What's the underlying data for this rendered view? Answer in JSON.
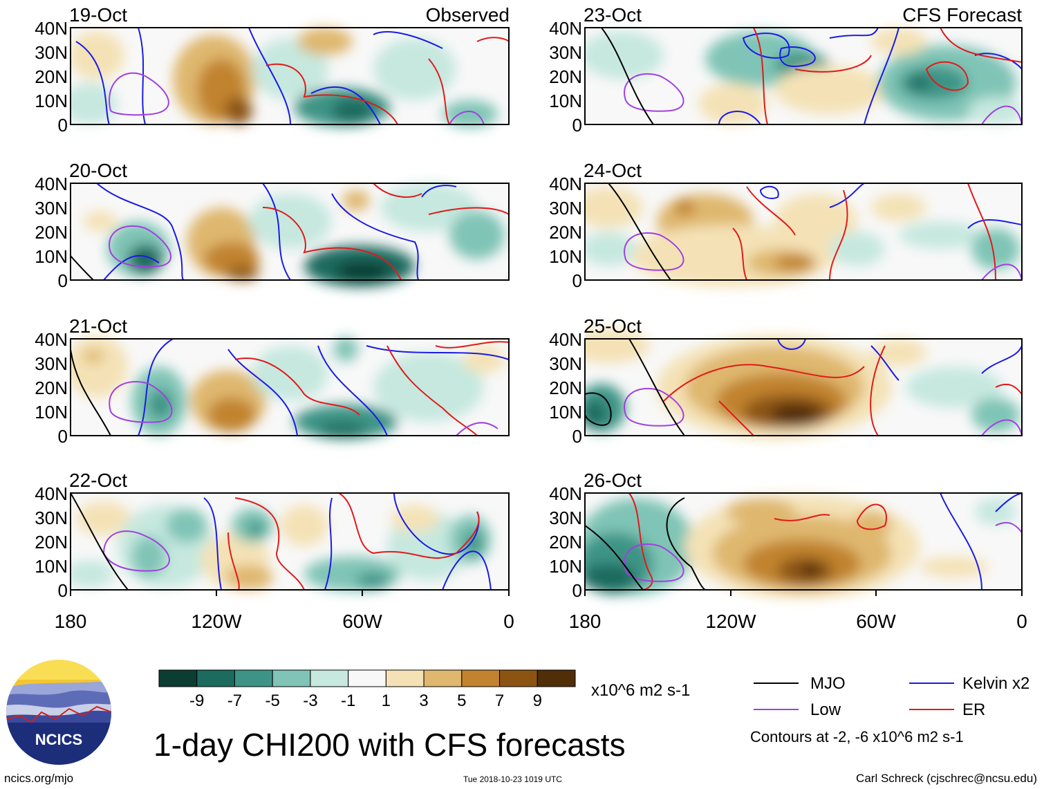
{
  "title": "1-day CHI200 with CFS forecasts",
  "columns": {
    "left_header": "Observed",
    "right_header": "CFS Forecast"
  },
  "panels_left": [
    {
      "date": "19-Oct"
    },
    {
      "date": "20-Oct"
    },
    {
      "date": "21-Oct"
    },
    {
      "date": "22-Oct"
    }
  ],
  "panels_right": [
    {
      "date": "23-Oct"
    },
    {
      "date": "24-Oct"
    },
    {
      "date": "25-Oct"
    },
    {
      "date": "26-Oct"
    }
  ],
  "axes": {
    "y_ticks": [
      "40N",
      "30N",
      "20N",
      "10N",
      "0"
    ],
    "x_ticks": [
      "180",
      "120W",
      "60W",
      "0"
    ]
  },
  "colorbar": {
    "labels": [
      "-9",
      "-7",
      "-5",
      "-3",
      "-1",
      "1",
      "3",
      "5",
      "7",
      "9"
    ],
    "colors": [
      "#0b3d33",
      "#1b6b5e",
      "#3d9486",
      "#7fc4b6",
      "#c6e8df",
      "#f8f8f8",
      "#f4e2b6",
      "#dfb76e",
      "#c1832f",
      "#8c5413",
      "#4f2e08"
    ],
    "units": "x10^6 m2 s-1"
  },
  "legend": {
    "items": [
      {
        "label": "MJO",
        "color": "#000000"
      },
      {
        "label": "Kelvin x2",
        "color": "#1a1ae6"
      },
      {
        "label": "Low",
        "color": "#a040e0"
      },
      {
        "label": "ER",
        "color": "#e01a1a"
      }
    ],
    "contours_note": "Contours at -2, -6 x10^6 m2 s-1"
  },
  "logo": {
    "text": "NCICS"
  },
  "footer": {
    "left": "ncics.org/mjo",
    "middle": "Tue 2018-10-23 1019 UTC",
    "right": "Carl Schreck (cjschrec@ncsu.edu)"
  }
}
